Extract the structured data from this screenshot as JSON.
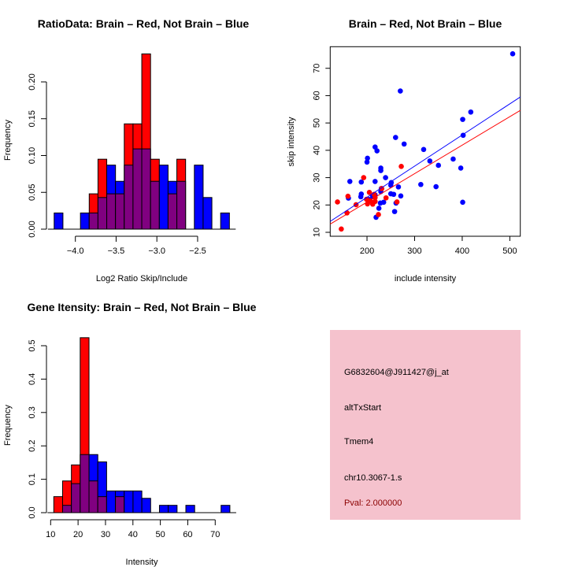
{
  "colors": {
    "red": "#ff0000",
    "blue": "#0000ff",
    "overlap": "#800080",
    "panel_bg": "#f5c2cd",
    "pval": "#8b0000"
  },
  "chart_data": [
    {
      "type": "bar",
      "title": "RatioData: Brain – Red, Not Brain – Blue",
      "xlabel": "Log2 Ratio Skip/Include",
      "ylabel": "Frequency",
      "bin_start": -4.26,
      "bin_width": 0.1075,
      "xticks": [
        -4.0,
        -3.5,
        -3.0,
        -2.5
      ],
      "xtick_labels": [
        "−4.0",
        "−3.5",
        "−3.0",
        "−2.5"
      ],
      "yticks": [
        0,
        0.05,
        0.1,
        0.15,
        0.2
      ],
      "ytick_labels": [
        "0.00",
        "0.05",
        "0.10",
        "0.15",
        "0.20"
      ],
      "series": [
        {
          "name": "Not Brain",
          "color": "blue",
          "values": [
            0.022,
            0,
            0,
            0.022,
            0.022,
            0.043,
            0.087,
            0.065,
            0.087,
            0.109,
            0.109,
            0.065,
            0.087,
            0.065,
            0.065,
            0,
            0.087,
            0.043,
            0,
            0.022
          ]
        },
        {
          "name": "Brain",
          "color": "red",
          "values": [
            0,
            0,
            0,
            0,
            0.048,
            0.095,
            0.048,
            0.048,
            0.143,
            0.143,
            0.238,
            0.095,
            0,
            0.048,
            0.095,
            0,
            0,
            0,
            0,
            0
          ]
        }
      ]
    },
    {
      "type": "scatter",
      "title": "Brain – Red, Not Brain – Blue",
      "xlabel": "include intensity",
      "ylabel": "skip intensity",
      "xlim": [
        122.7,
        522
      ],
      "ylim": [
        8.56,
        77.9
      ],
      "xticks": [
        200,
        300,
        400,
        500
      ],
      "xtick_labels": [
        "200",
        "300",
        "400",
        "500"
      ],
      "yticks": [
        10,
        20,
        30,
        40,
        50,
        60,
        70
      ],
      "ytick_labels": [
        "10",
        "20",
        "30",
        "40",
        "50",
        "60",
        "70"
      ],
      "series": [
        {
          "name": "Not Brain",
          "color": "blue",
          "fit": [
            [
              122.7,
              14.0
            ],
            [
              522,
              59.5
            ]
          ],
          "points": [
            [
              506,
              75.3
            ],
            [
              270,
              61.7
            ],
            [
              418,
              54
            ],
            [
              401,
              51.3
            ],
            [
              402,
              45.5
            ],
            [
              278,
              42.3
            ],
            [
              260,
              44.7
            ],
            [
              217,
              41.2
            ],
            [
              221,
              39.8
            ],
            [
              319,
              40.3
            ],
            [
              201,
              37.1
            ],
            [
              200,
              35.7
            ],
            [
              332,
              36.1
            ],
            [
              381,
              36.8
            ],
            [
              350,
              34.5
            ],
            [
              397,
              33.5
            ],
            [
              229,
              33.5
            ],
            [
              229,
              32.6
            ],
            [
              239,
              30
            ],
            [
              164,
              28.6
            ],
            [
              188,
              28.4
            ],
            [
              217,
              28.6
            ],
            [
              251,
              28.2
            ],
            [
              250,
              27.2
            ],
            [
              313,
              27.5
            ],
            [
              345,
              26.7
            ],
            [
              266,
              26.6
            ],
            [
              230,
              26
            ],
            [
              229,
              24.9
            ],
            [
              188,
              24
            ],
            [
              187,
              23
            ],
            [
              250,
              24.1
            ],
            [
              256,
              23.9
            ],
            [
              271,
              23.3
            ],
            [
              212,
              23.1
            ],
            [
              217,
              23.7
            ],
            [
              161,
              22.5
            ],
            [
              204,
              22
            ],
            [
              203,
              21.3
            ],
            [
              235,
              21
            ],
            [
              228,
              20.7
            ],
            [
              261,
              20.7
            ],
            [
              401,
              21
            ],
            [
              225,
              18.8
            ],
            [
              258,
              17.6
            ],
            [
              219,
              15.5
            ]
          ]
        },
        {
          "name": "Brain",
          "color": "red",
          "fit": [
            [
              122.7,
              13.0
            ],
            [
              522,
              54.6
            ]
          ],
          "points": [
            [
              138,
              21.1
            ],
            [
              146,
              11.2
            ],
            [
              158,
              17.1
            ],
            [
              160,
              23.2
            ],
            [
              177,
              20.1
            ],
            [
              193,
              30
            ],
            [
              201,
              20.4
            ],
            [
              199,
              22.1
            ],
            [
              205,
              24.6
            ],
            [
              215,
              23.9
            ],
            [
              212,
              20.3
            ],
            [
              217,
              21.3
            ],
            [
              217,
              22.7
            ],
            [
              224,
              16.5
            ],
            [
              231,
              26
            ],
            [
              240,
              22.6
            ],
            [
              263,
              21.1
            ],
            [
              272,
              34.1
            ],
            [
              207,
              21.5
            ]
          ]
        }
      ]
    },
    {
      "type": "bar",
      "title": "Gene Itensity: Brain – Red, Not Brain – Blue",
      "xlabel": "Intensity",
      "ylabel": "Frequency",
      "bin_start": 11.15,
      "bin_width": 3.21,
      "xticks": [
        10,
        20,
        30,
        40,
        50,
        60,
        70
      ],
      "xtick_labels": [
        "10",
        "20",
        "30",
        "40",
        "50",
        "60",
        "70"
      ],
      "yticks": [
        0,
        0.1,
        0.2,
        0.3,
        0.4,
        0.5
      ],
      "ytick_labels": [
        "0.0",
        "0.1",
        "0.2",
        "0.3",
        "0.4",
        "0.5"
      ],
      "series": [
        {
          "name": "Not Brain",
          "color": "blue",
          "values": [
            0,
            0.022,
            0.087,
            0.174,
            0.174,
            0.152,
            0.065,
            0.065,
            0.065,
            0.065,
            0.043,
            0,
            0.022,
            0.022,
            0,
            0.022,
            0,
            0,
            0,
            0.022
          ]
        },
        {
          "name": "Brain",
          "color": "red",
          "values": [
            0.048,
            0.095,
            0.143,
            0.524,
            0.095,
            0.048,
            0,
            0.048,
            0,
            0,
            0,
            0,
            0,
            0,
            0,
            0,
            0,
            0,
            0,
            0
          ]
        }
      ]
    }
  ],
  "info": {
    "probe": "G6832604@J911427@j_at",
    "event": "altTxStart",
    "gene": "Tmem4",
    "location": "chr10.3067-1.s",
    "pval": "Pval: 2.000000"
  }
}
